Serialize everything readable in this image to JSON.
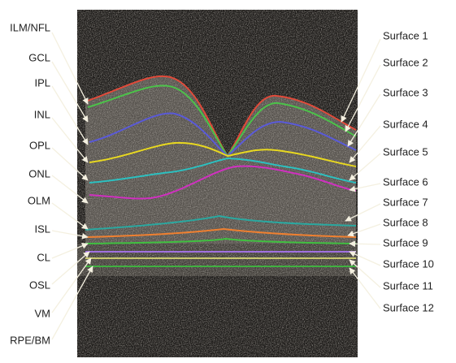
{
  "left_labels": [
    "ILM/NFL",
    "GCL",
    "IPL",
    "INL",
    "OPL",
    "ONL",
    "OLM",
    "ISL",
    "CL",
    "OSL",
    "VM",
    "RPE/BM"
  ],
  "right_labels": [
    "Surface 1",
    "Surface 2",
    "Surface 3",
    "Surface 4",
    "Surface 5",
    "Surface 6",
    "Surface 7",
    "Surface 8",
    "Surface 9",
    "Surface 10",
    "Surface 11",
    "Surface 12"
  ]
}
